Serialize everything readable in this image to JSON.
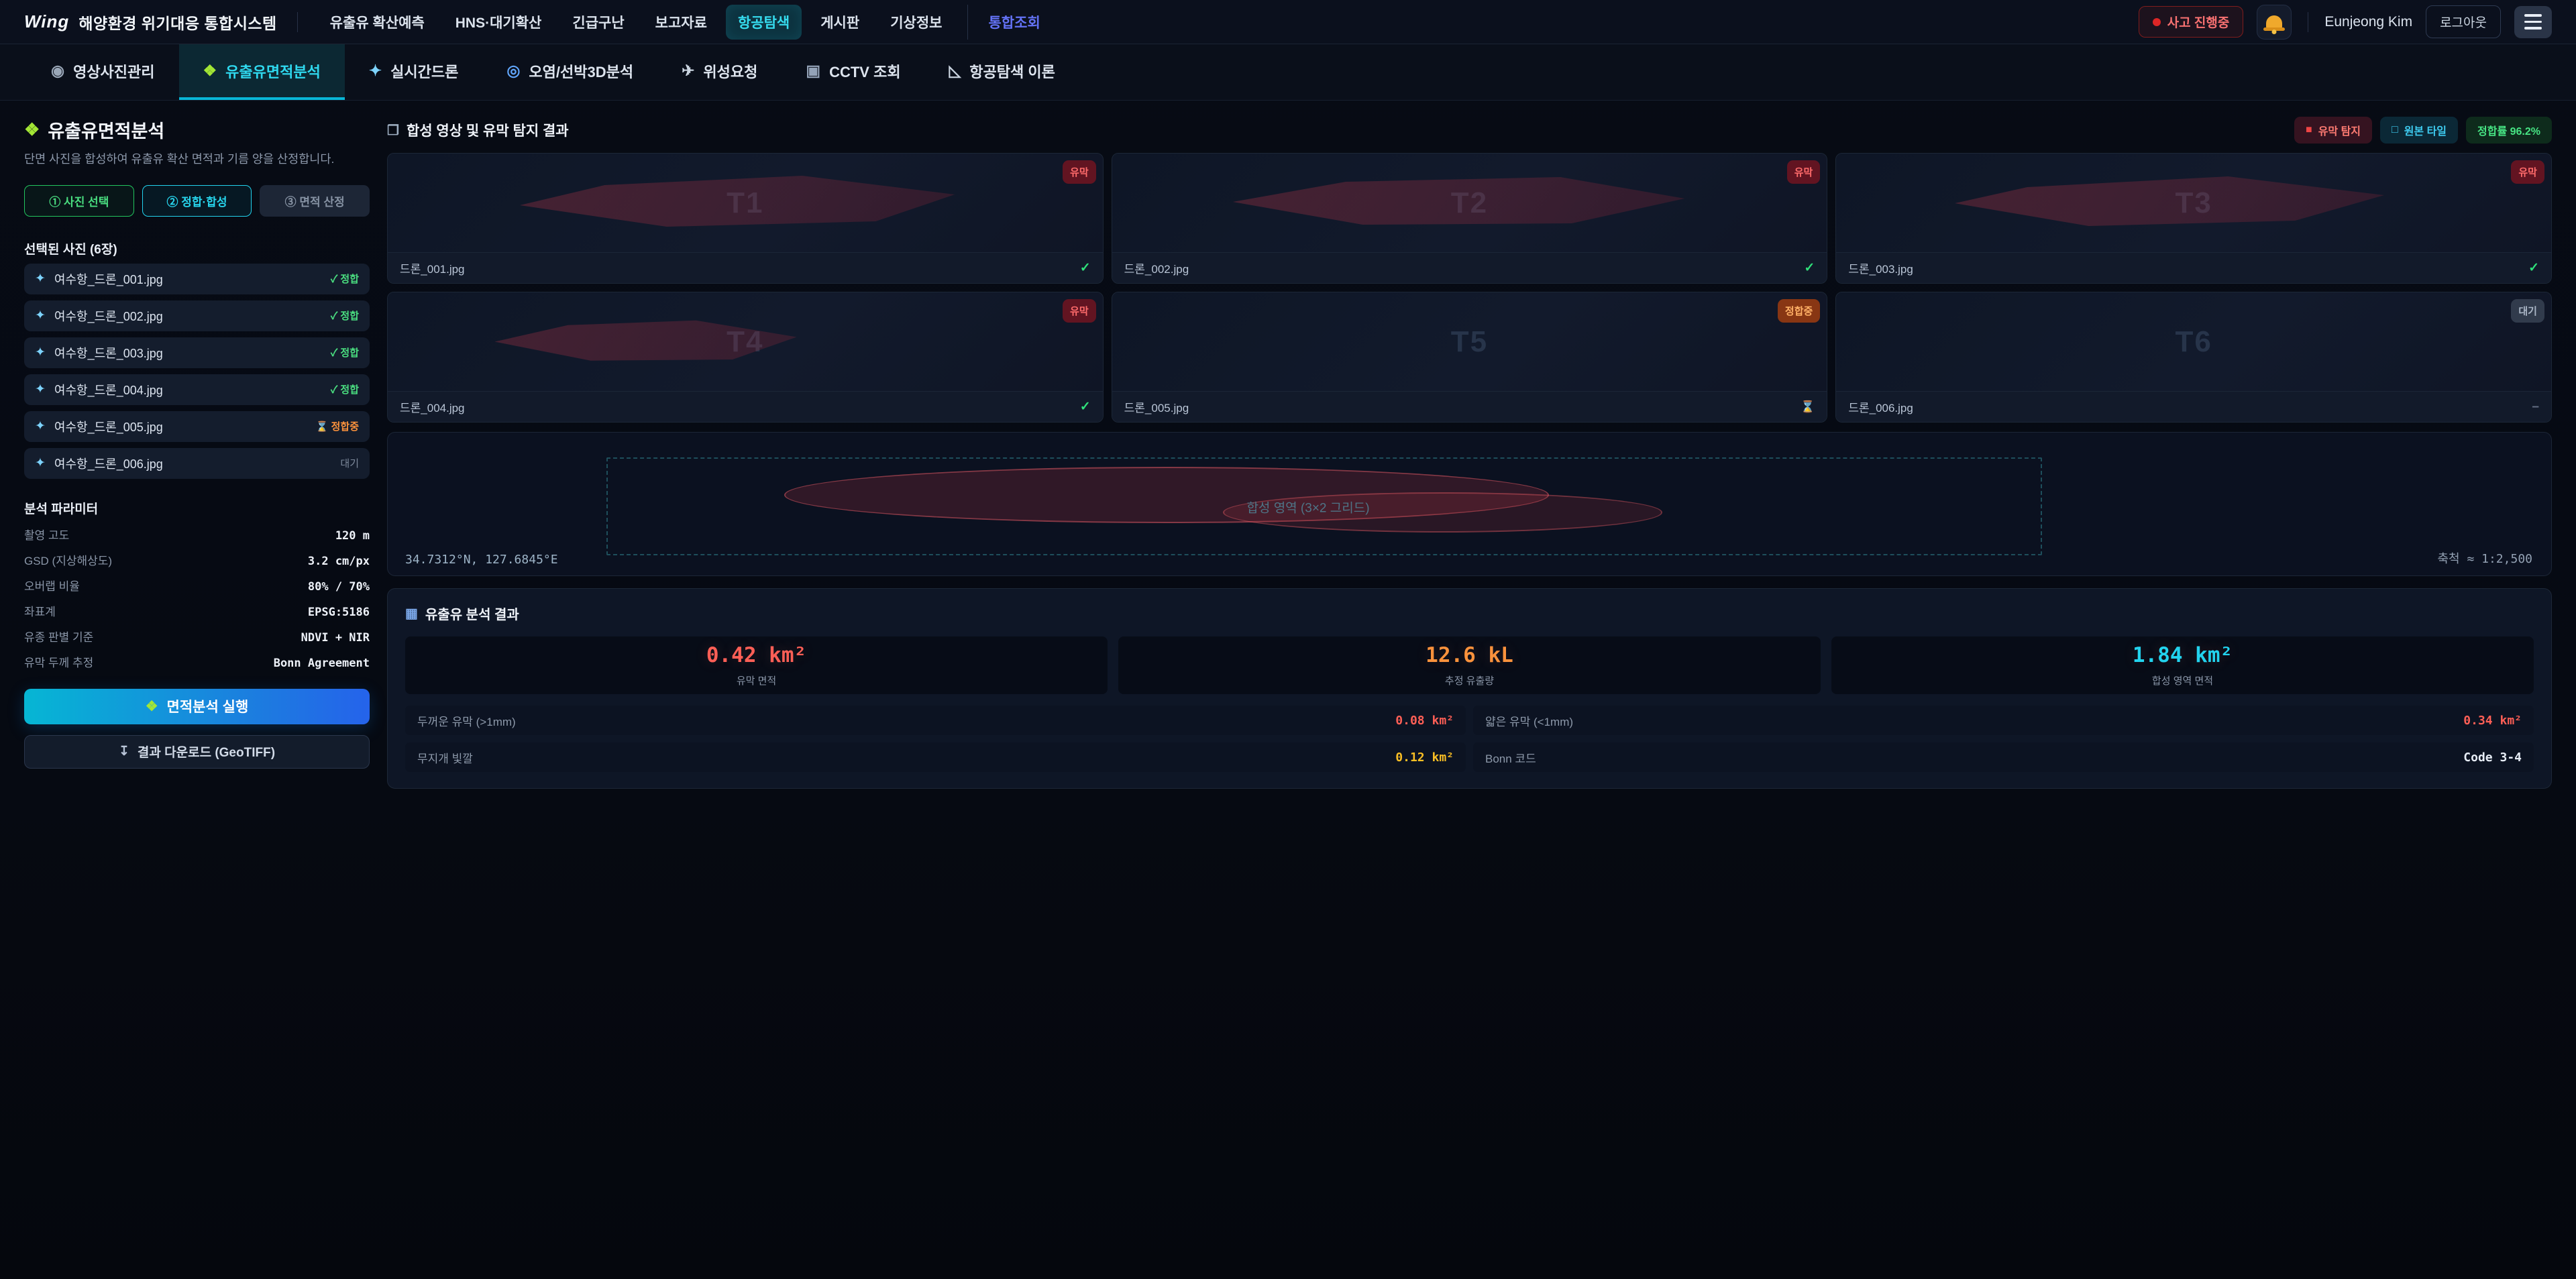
{
  "colors": {
    "accent_cyan": "#22d3ee",
    "accent_blue": "#2563eb",
    "success_green": "#4ade80",
    "warning_orange": "#fb923c",
    "danger_red": "#ff5f56",
    "highlight_yellow": "#fbbf24",
    "special_nav_blue": "#6372f5"
  },
  "topbar": {
    "logo_mark": "Wing",
    "app_title": "해양환경 위기대응 통합시스템",
    "nav": [
      {
        "label": "유출유 확산예측",
        "state": "normal"
      },
      {
        "label": "HNS·대기확산",
        "state": "normal"
      },
      {
        "label": "긴급구난",
        "state": "normal"
      },
      {
        "label": "보고자료",
        "state": "normal"
      },
      {
        "label": "항공탐색",
        "state": "active"
      },
      {
        "label": "게시판",
        "state": "normal"
      },
      {
        "label": "기상정보",
        "state": "normal"
      },
      {
        "label": "통합조회",
        "state": "special"
      }
    ],
    "incident_badge": "사고 진행중",
    "user_name": "Eunjeong Kim",
    "logout_label": "로그아웃"
  },
  "tabs": [
    {
      "icon": "camera-icon",
      "label": "영상사진관리",
      "state": "normal"
    },
    {
      "icon": "puzzle-icon",
      "label": "유출유면적분석",
      "state": "active"
    },
    {
      "icon": "drone-icon",
      "label": "실시간드론",
      "state": "normal"
    },
    {
      "icon": "search-icon",
      "label": "오염/선박3D분석",
      "state": "normal"
    },
    {
      "icon": "satellite-icon",
      "label": "위성요청",
      "state": "normal"
    },
    {
      "icon": "cctv-icon",
      "label": "CCTV 조회",
      "state": "normal"
    },
    {
      "icon": "protractor-icon",
      "label": "항공탐색 이론",
      "state": "normal"
    }
  ],
  "sidebar": {
    "icon": "puzzle-icon",
    "title": "유출유면적분석",
    "subtitle": "단면 사진을 합성하여 유출유 확산 면적과 기름 양을 산정합니다.",
    "steps": [
      {
        "label": "① 사진 선택",
        "state": "step-done"
      },
      {
        "label": "② 정합·합성",
        "state": "step-active"
      },
      {
        "label": "③ 면적 산정",
        "state": "step-pending"
      }
    ],
    "photos_header": "선택된 사진 (6장)",
    "photos": [
      {
        "icon": "drone-photo-icon",
        "name": "여수항_드론_001.jpg",
        "status": "✓ 정합",
        "state": "done"
      },
      {
        "icon": "drone-photo-icon",
        "name": "여수항_드론_002.jpg",
        "status": "✓ 정합",
        "state": "done"
      },
      {
        "icon": "drone-photo-icon",
        "name": "여수항_드론_003.jpg",
        "status": "✓ 정합",
        "state": "done"
      },
      {
        "icon": "drone-photo-icon",
        "name": "여수항_드론_004.jpg",
        "status": "✓ 정합",
        "state": "done"
      },
      {
        "icon": "drone-photo-icon",
        "name": "여수항_드론_005.jpg",
        "status": "⌛ 정합중",
        "state": "working"
      },
      {
        "icon": "drone-photo-icon",
        "name": "여수항_드론_006.jpg",
        "status": "대기",
        "state": "waiting"
      }
    ],
    "params_header": "분석 파라미터",
    "params": [
      {
        "label": "촬영 고도",
        "value": "120 m"
      },
      {
        "label": "GSD (지상해상도)",
        "value": "3.2 cm/px"
      },
      {
        "label": "오버랩 비율",
        "value": "80% / 70%"
      },
      {
        "label": "좌표계",
        "value": "EPSG:5186"
      },
      {
        "label": "유종 판별 기준",
        "value": "NDVI + NIR"
      },
      {
        "label": "유막 두께 추정",
        "value": "Bonn Agreement"
      }
    ],
    "run_button": {
      "icon": "puzzle-icon",
      "label": "면적분석 실행"
    },
    "download_button": {
      "icon": "download-icon",
      "label": "결과 다운로드 (GeoTIFF)"
    }
  },
  "main": {
    "section_title": {
      "icon": "composite-image-icon",
      "label": "합성 영상 및 유막 탐지 결과"
    },
    "legend": [
      {
        "swatch": "■",
        "label": "유막 탐지",
        "state": "oil"
      },
      {
        "swatch": "□",
        "label": "원본 타일",
        "state": "tile"
      },
      {
        "swatch": "",
        "label": "정합률 96.2%",
        "state": "rate"
      }
    ],
    "tiles": [
      {
        "tile_id": "T1",
        "file": "드론_001.jpg",
        "badge": "유막",
        "badge_state": "oil",
        "status": "✓",
        "state": "done",
        "has_slick": true
      },
      {
        "tile_id": "T2",
        "file": "드론_002.jpg",
        "badge": "유막",
        "badge_state": "oil",
        "status": "✓",
        "state": "done",
        "has_slick": true
      },
      {
        "tile_id": "T3",
        "file": "드론_003.jpg",
        "badge": "유막",
        "badge_state": "oil",
        "status": "✓",
        "state": "done",
        "has_slick": true
      },
      {
        "tile_id": "T4",
        "file": "드론_004.jpg",
        "badge": "유막",
        "badge_state": "oil",
        "status": "✓",
        "state": "done",
        "has_slick": true
      },
      {
        "tile_id": "T5",
        "file": "드론_005.jpg",
        "badge": "정합중",
        "badge_state": "working",
        "status": "⌛",
        "state": "working",
        "has_slick": false
      },
      {
        "tile_id": "T6",
        "file": "드론_006.jpg",
        "badge": "대기",
        "badge_state": "waiting",
        "status": "–",
        "state": "waiting",
        "has_slick": false
      }
    ],
    "composite": {
      "area_label": "합성 영역 (3×2 그리드)",
      "coordinates": "34.7312°N, 127.6845°E",
      "scale_label": "축척 ≈ 1:2,500"
    },
    "results": {
      "title": {
        "icon": "chart-icon",
        "label": "유출유 분석 결과"
      },
      "stats": [
        {
          "value": "0.42 km²",
          "label": "유막 면적",
          "color": "#ff5f56"
        },
        {
          "value": "12.6 kL",
          "label": "추정 유출량",
          "color": "#fb923c"
        },
        {
          "value": "1.84 km²",
          "label": "합성 영역 면적",
          "color": "#22d3ee"
        }
      ],
      "details": [
        {
          "label": "두꺼운 유막 (>1mm)",
          "value": "0.08 km²",
          "color": "#ff5f56"
        },
        {
          "label": "얇은 유막 (<1mm)",
          "value": "0.34 km²",
          "color": "#ff5f56"
        },
        {
          "label": "무지개 빛깔",
          "value": "0.12 km²",
          "color": "#fbbf24"
        },
        {
          "label": "Bonn 코드",
          "value": "Code 3-4",
          "color": "#e7edf6"
        }
      ]
    }
  }
}
